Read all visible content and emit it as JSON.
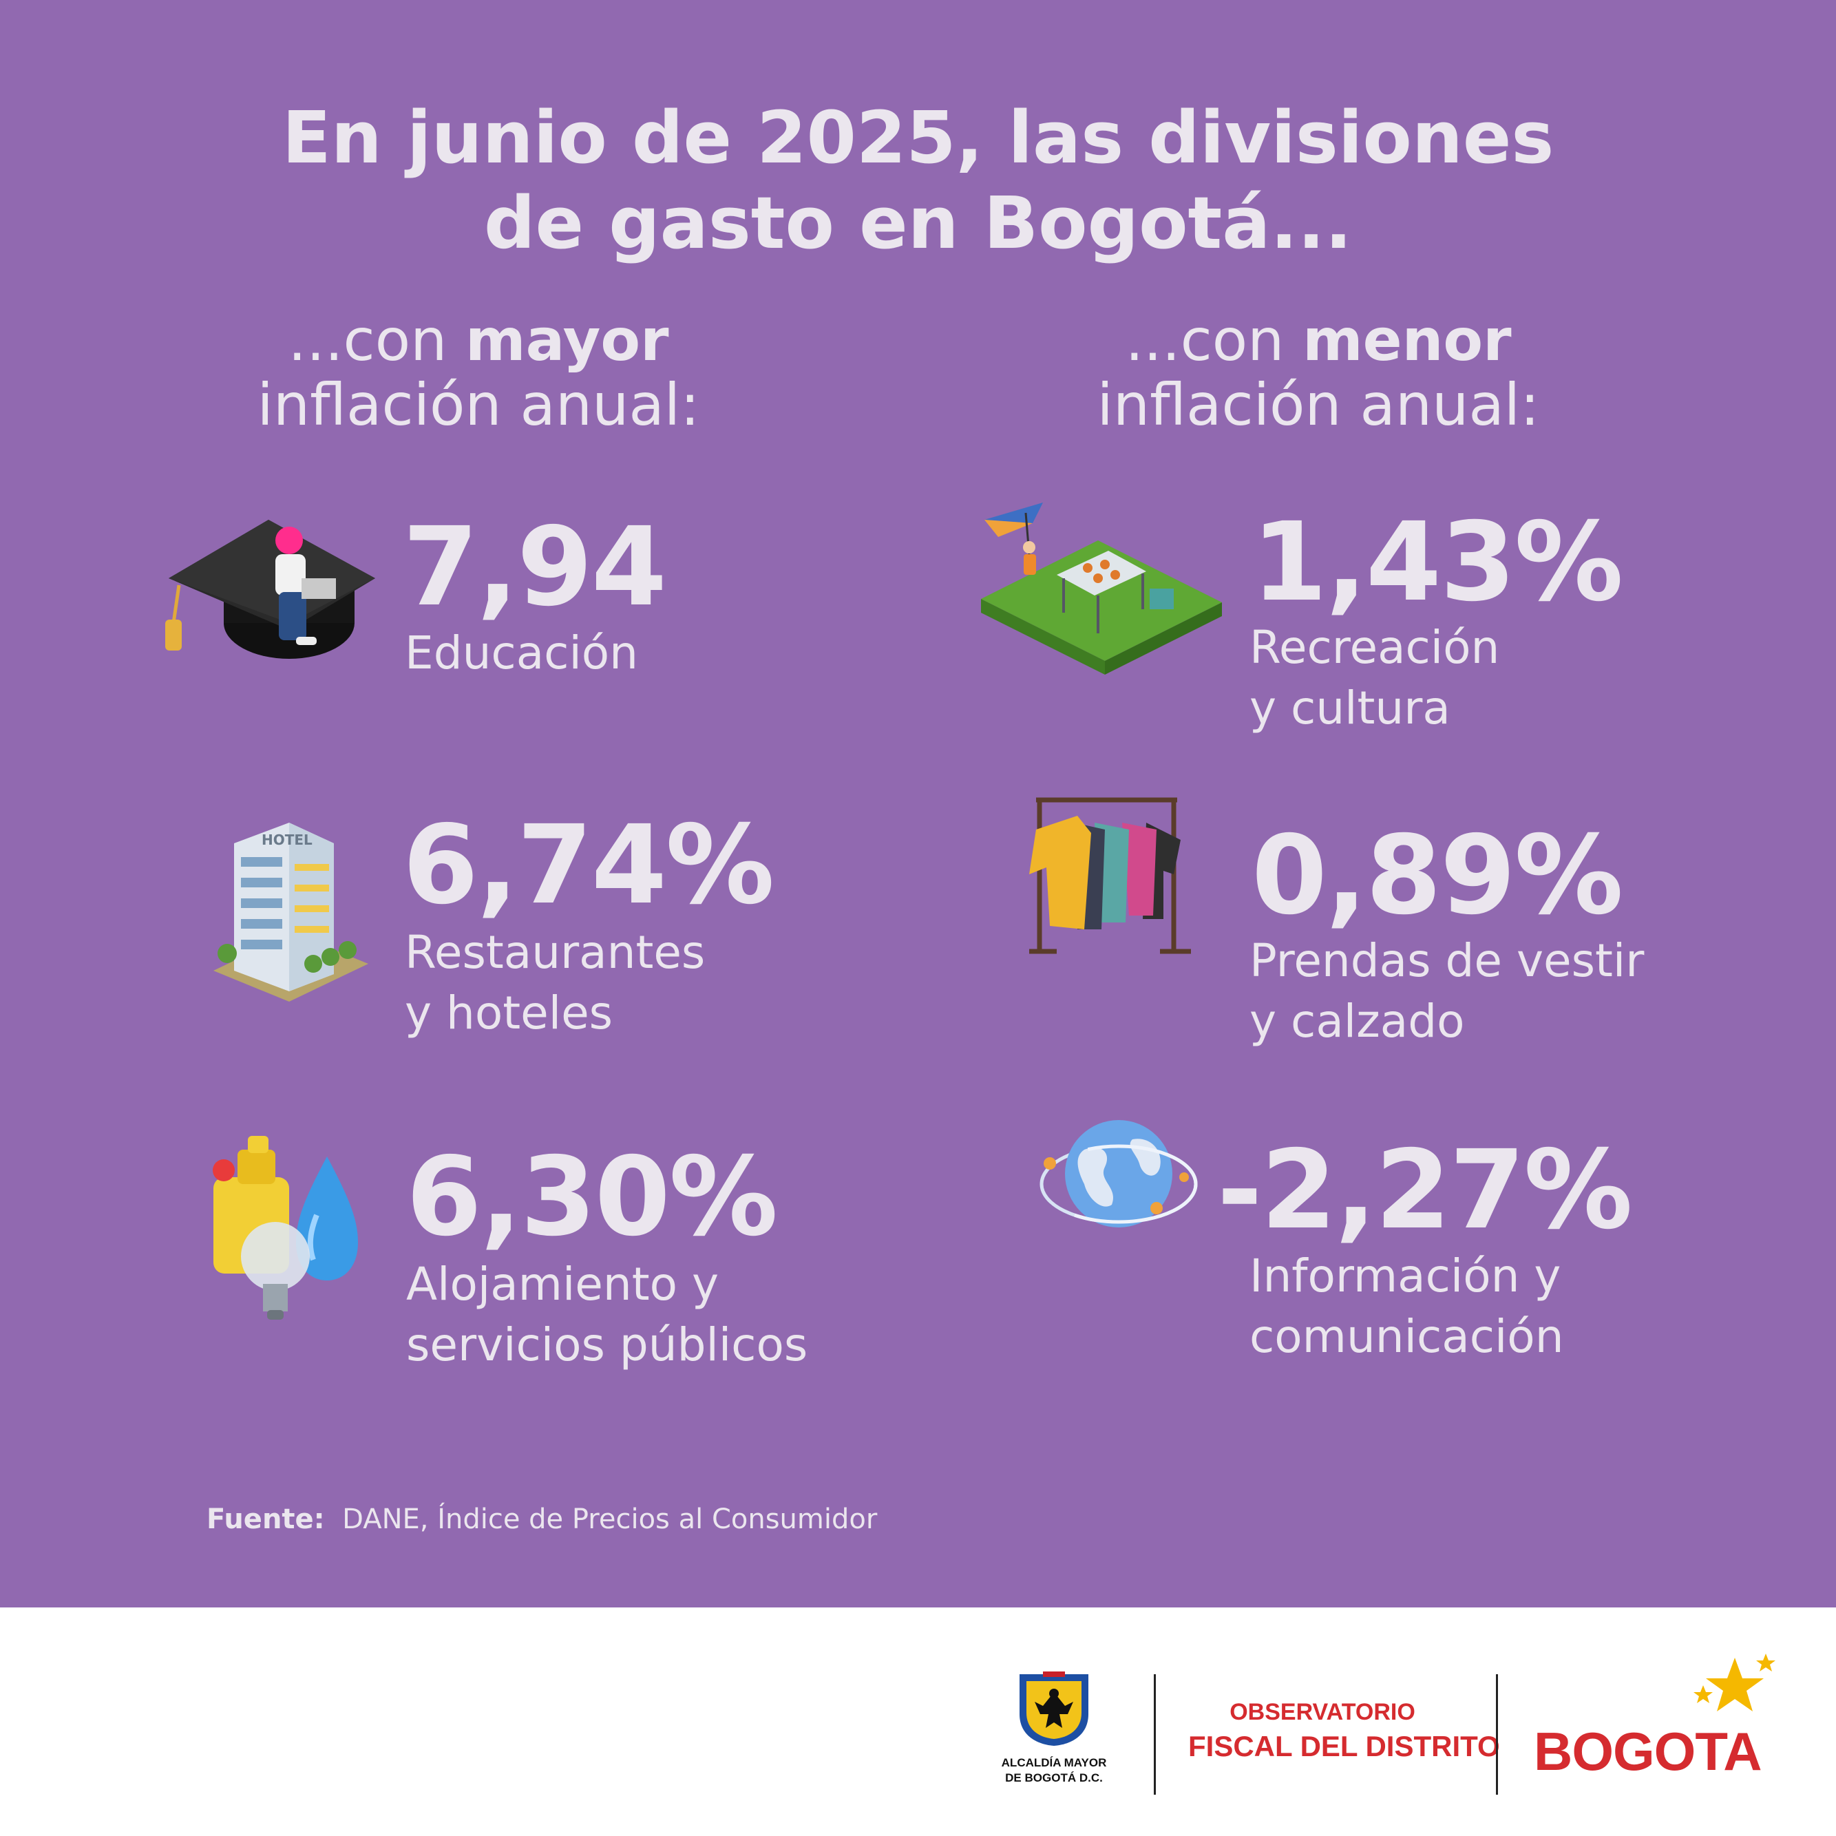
{
  "title": {
    "line1": "En junio de 2025, las divisiones",
    "line2": "de gasto en Bogotá..."
  },
  "columns": {
    "left": {
      "prefix": "...con ",
      "emphasis": "mayor",
      "line2": "inflación anual:"
    },
    "right": {
      "prefix": "...con ",
      "emphasis": "menor",
      "line2": "inflación anual:"
    }
  },
  "items": [
    {
      "value": "7,94",
      "label1": "Educación",
      "label2": "",
      "icon": "graduation-cap-icon"
    },
    {
      "value": "6,74%",
      "label1": "Restaurantes",
      "label2": "y hoteles",
      "icon": "hotel-building-icon"
    },
    {
      "value": "6,30%",
      "label1": "Alojamiento y",
      "label2": "servicios públicos",
      "icon": "utilities-icon"
    },
    {
      "value": "1,43%",
      "label1": "Recreación",
      "label2": "y cultura",
      "icon": "park-recreation-icon"
    },
    {
      "value": "0,89%",
      "label1": "Prendas de vestir",
      "label2": "y calzado",
      "icon": "clothes-rack-icon"
    },
    {
      "value": "-2,27%",
      "label1": "Información y",
      "label2": "comunicación",
      "icon": "globe-network-icon"
    }
  ],
  "source": {
    "label": "Fuente:",
    "text": "DANE, Índice de Precios al Consumidor"
  },
  "logos": {
    "alcaldia_line1": "ALCALDÍA MAYOR",
    "alcaldia_line2": "DE BOGOTÁ D.C.",
    "observatorio_line1": "OBSERVATORIO",
    "observatorio_line2": "FISCAL DEL DISTRITO",
    "bogota": "BOGOTA"
  },
  "colors": {
    "background": "#9169b0",
    "text": "#ebe6ee",
    "brand_red": "#d52b2f",
    "star_yellow": "#f5b800"
  }
}
